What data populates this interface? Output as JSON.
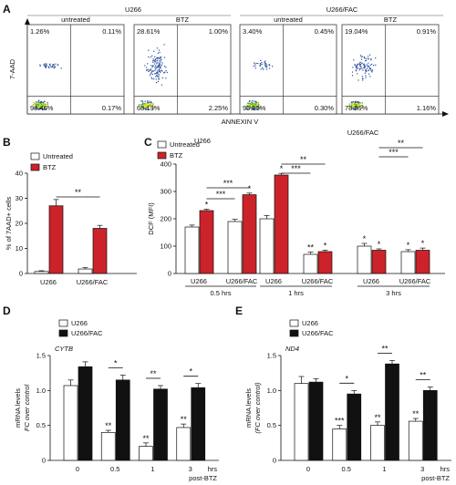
{
  "panels": {
    "A": "A",
    "B": "B",
    "C": "C",
    "D": "D",
    "E": "E"
  },
  "colors": {
    "red": "#cc2229",
    "black": "#111111",
    "white": "#ffffff"
  },
  "flow": {
    "groups": [
      "U266",
      "U266/FAC"
    ],
    "conditions": [
      "untreated",
      "BTZ",
      "untreated",
      "BTZ"
    ],
    "ylabel": "7-AAD",
    "xlabel": "ANNEXIN V",
    "plots": [
      {
        "ul": "1.26%",
        "ur": "0.11%",
        "ll": "98.46%",
        "lr": "0.17%",
        "spread": 0.2
      },
      {
        "ul": "28.61%",
        "ur": "1.00%",
        "ll": "68.13%",
        "lr": "2.25%",
        "spread": 1.0
      },
      {
        "ul": "3.40%",
        "ur": "0.45%",
        "ll": "95.85%",
        "lr": "0.30%",
        "spread": 0.35
      },
      {
        "ul": "19.04%",
        "ur": "0.91%",
        "ll": "78.89%",
        "lr": "1.16%",
        "spread": 0.8
      }
    ]
  },
  "chart_data": [
    {
      "type": "bar",
      "panel": "B",
      "ylabel": "% of 7AAD+ cells",
      "ylim": [
        0,
        40
      ],
      "yticks": [
        "0",
        "10",
        "20",
        "30",
        "40"
      ],
      "categories": [
        "U266",
        "U266/FAC"
      ],
      "series": [
        {
          "name": "Untreated",
          "values": [
            0.8,
            1.8
          ],
          "errors": [
            0.3,
            0.5
          ]
        },
        {
          "name": "BTZ",
          "values": [
            27,
            18
          ],
          "errors": [
            2.5,
            1.2
          ]
        }
      ],
      "legend": [
        "Untreated",
        "BTZ"
      ],
      "annotations": [
        "**"
      ]
    },
    {
      "type": "bar",
      "panel": "C",
      "ylabel": "DCF (MFI)",
      "ylim": [
        0,
        400
      ],
      "yticks": [
        "0",
        "100",
        "200",
        "300",
        "400"
      ],
      "legend": [
        "Untreated",
        "BTZ"
      ],
      "legend_title": "U266",
      "side_title": "U266/FAC",
      "cell_labels": [
        "U266",
        "U266/FAC"
      ],
      "timepoints": [
        "0.5 hrs",
        "1 hrs",
        "3 hrs"
      ],
      "series": [
        {
          "name": "Untreated",
          "values": [
            170,
            190,
            200,
            70,
            100,
            80
          ],
          "errors": [
            7,
            8,
            12,
            8,
            10,
            7
          ]
        },
        {
          "name": "BTZ",
          "values": [
            230,
            288,
            360,
            80,
            85,
            85
          ],
          "errors": [
            5,
            6,
            6,
            5,
            5,
            8
          ]
        }
      ],
      "bar_stars": [
        "",
        "*",
        "",
        "*",
        "",
        "*",
        "**",
        "*",
        "*",
        "*",
        "*",
        "*"
      ],
      "bracket_stars": [
        "***",
        "***",
        "***",
        "**",
        "***",
        "**"
      ]
    },
    {
      "type": "bar",
      "panel": "D",
      "title": "CYTB",
      "ylabel": "mRNA levels",
      "ylabel2": "FC over control",
      "ylim": [
        0,
        1.5
      ],
      "yticks": [
        "0",
        "0.5",
        "1.0",
        "1.5"
      ],
      "categories": [
        "0",
        "0.5",
        "1",
        "3"
      ],
      "xunit": "hrs",
      "xunit2": "post-BTZ",
      "legend": [
        "U266",
        "U266/FAC"
      ],
      "series": [
        {
          "name": "U266",
          "values": [
            1.07,
            0.4,
            0.2,
            0.47
          ],
          "errors": [
            0.08,
            0.03,
            0.05,
            0.05
          ]
        },
        {
          "name": "U266/FAC",
          "values": [
            1.34,
            1.15,
            1.02,
            1.04
          ],
          "errors": [
            0.07,
            0.07,
            0.05,
            0.06
          ]
        }
      ],
      "bar_stars": [
        "",
        "**",
        "**",
        "**"
      ],
      "bracket_stars": [
        "",
        "*",
        "**",
        "*"
      ]
    },
    {
      "type": "bar",
      "panel": "E",
      "title": "ND4",
      "ylabel": "mRNA levels",
      "ylabel2": "(FC over control)",
      "ylim": [
        0,
        1.5
      ],
      "yticks": [
        "0",
        "0.5",
        "1.0",
        "1.5"
      ],
      "categories": [
        "0",
        "0.5",
        "1",
        "3"
      ],
      "xunit": "hrs",
      "xunit2": "post-BTZ",
      "legend": [
        "U266",
        "U266/FAC"
      ],
      "series": [
        {
          "name": "U266",
          "values": [
            1.1,
            0.45,
            0.5,
            0.56
          ],
          "errors": [
            0.1,
            0.05,
            0.05,
            0.04
          ]
        },
        {
          "name": "U266/FAC",
          "values": [
            1.12,
            0.95,
            1.38,
            1.0
          ],
          "errors": [
            0.05,
            0.05,
            0.05,
            0.05
          ]
        }
      ],
      "bar_stars": [
        "",
        "***",
        "**",
        "**"
      ],
      "bracket_stars": [
        "",
        "*",
        "**",
        "**"
      ]
    }
  ]
}
